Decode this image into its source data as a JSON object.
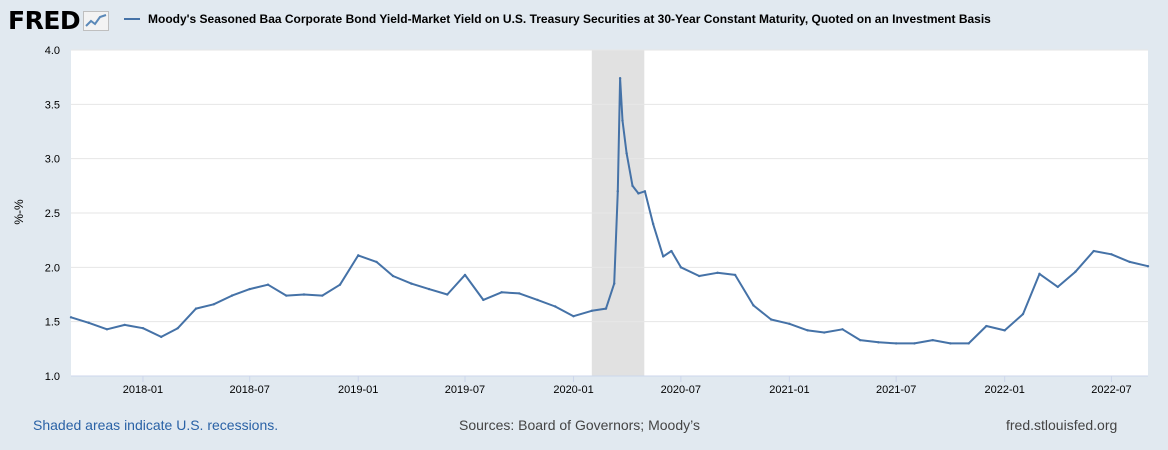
{
  "header": {
    "logo_text": "FRED",
    "logo_icon": "chart-line-icon",
    "legend_label": "Moody's Seasoned Baa Corporate Bond Yield-Market Yield on U.S. Treasury Securities at 30-Year Constant Maturity, Quoted on an Investment Basis"
  },
  "footer": {
    "recession_note": "Shaded areas indicate U.S. recessions.",
    "sources": "Sources: Board of Governors; Moody’s",
    "site": "fred.stlouisfed.org"
  },
  "colors": {
    "series": "#4572a7",
    "background": "#e1e9f0",
    "plot_background": "#ffffff",
    "recession_shade": "#e1e1e1",
    "link": "#2a62a6"
  },
  "chart_data": {
    "type": "line",
    "title": "",
    "xlabel": "",
    "ylabel": "%-%",
    "ylim": [
      1.0,
      4.0
    ],
    "yticks": [
      "1.0",
      "1.5",
      "2.0",
      "2.5",
      "3.0",
      "3.5",
      "4.0"
    ],
    "xlim": [
      "2017-09-01",
      "2022-09-01"
    ],
    "xticks": [
      "2018-01",
      "2018-07",
      "2019-01",
      "2019-07",
      "2020-01",
      "2020-07",
      "2021-01",
      "2021-07",
      "2022-01",
      "2022-07"
    ],
    "grid": true,
    "legend": "top-left",
    "recessions": [
      {
        "start": "2020-02-01",
        "end": "2020-04-30"
      }
    ],
    "series": [
      {
        "name": "Moody's Seasoned Baa Corporate Bond Yield-Market Yield on U.S. Treasury Securities at 30-Year Constant Maturity, Quoted on an Investment Basis",
        "x": [
          "2017-09-01",
          "2017-10-01",
          "2017-11-01",
          "2017-12-01",
          "2018-01-01",
          "2018-02-01",
          "2018-03-01",
          "2018-04-01",
          "2018-05-01",
          "2018-06-01",
          "2018-07-01",
          "2018-08-01",
          "2018-09-01",
          "2018-10-01",
          "2018-11-01",
          "2018-12-01",
          "2019-01-01",
          "2019-02-01",
          "2019-03-01",
          "2019-04-01",
          "2019-05-01",
          "2019-06-01",
          "2019-07-01",
          "2019-08-01",
          "2019-09-01",
          "2019-10-01",
          "2019-11-01",
          "2019-12-01",
          "2020-01-01",
          "2020-02-01",
          "2020-02-25",
          "2020-03-10",
          "2020-03-16",
          "2020-03-20",
          "2020-03-24",
          "2020-03-31",
          "2020-04-10",
          "2020-04-20",
          "2020-05-01",
          "2020-05-15",
          "2020-06-01",
          "2020-06-15",
          "2020-07-01",
          "2020-08-01",
          "2020-09-01",
          "2020-10-01",
          "2020-11-01",
          "2020-12-01",
          "2021-01-01",
          "2021-02-01",
          "2021-03-01",
          "2021-04-01",
          "2021-05-01",
          "2021-06-01",
          "2021-07-01",
          "2021-08-01",
          "2021-09-01",
          "2021-10-01",
          "2021-11-01",
          "2021-12-01",
          "2022-01-01",
          "2022-02-01",
          "2022-03-01",
          "2022-04-01",
          "2022-05-01",
          "2022-06-01",
          "2022-07-01",
          "2022-08-01",
          "2022-09-01"
        ],
        "values": [
          1.54,
          1.49,
          1.43,
          1.47,
          1.44,
          1.36,
          1.44,
          1.62,
          1.66,
          1.74,
          1.8,
          1.84,
          1.74,
          1.75,
          1.74,
          1.84,
          2.11,
          2.05,
          1.92,
          1.85,
          1.8,
          1.75,
          1.93,
          1.7,
          1.77,
          1.76,
          1.7,
          1.64,
          1.55,
          1.6,
          1.62,
          1.85,
          2.7,
          3.74,
          3.35,
          3.05,
          2.75,
          2.68,
          2.7,
          2.4,
          2.1,
          2.15,
          2.0,
          1.92,
          1.95,
          1.93,
          1.65,
          1.52,
          1.48,
          1.42,
          1.4,
          1.43,
          1.33,
          1.31,
          1.3,
          1.3,
          1.33,
          1.3,
          1.3,
          1.46,
          1.42,
          1.57,
          1.94,
          1.82,
          1.96,
          2.15,
          2.12,
          2.05,
          2.01
        ]
      }
    ]
  }
}
